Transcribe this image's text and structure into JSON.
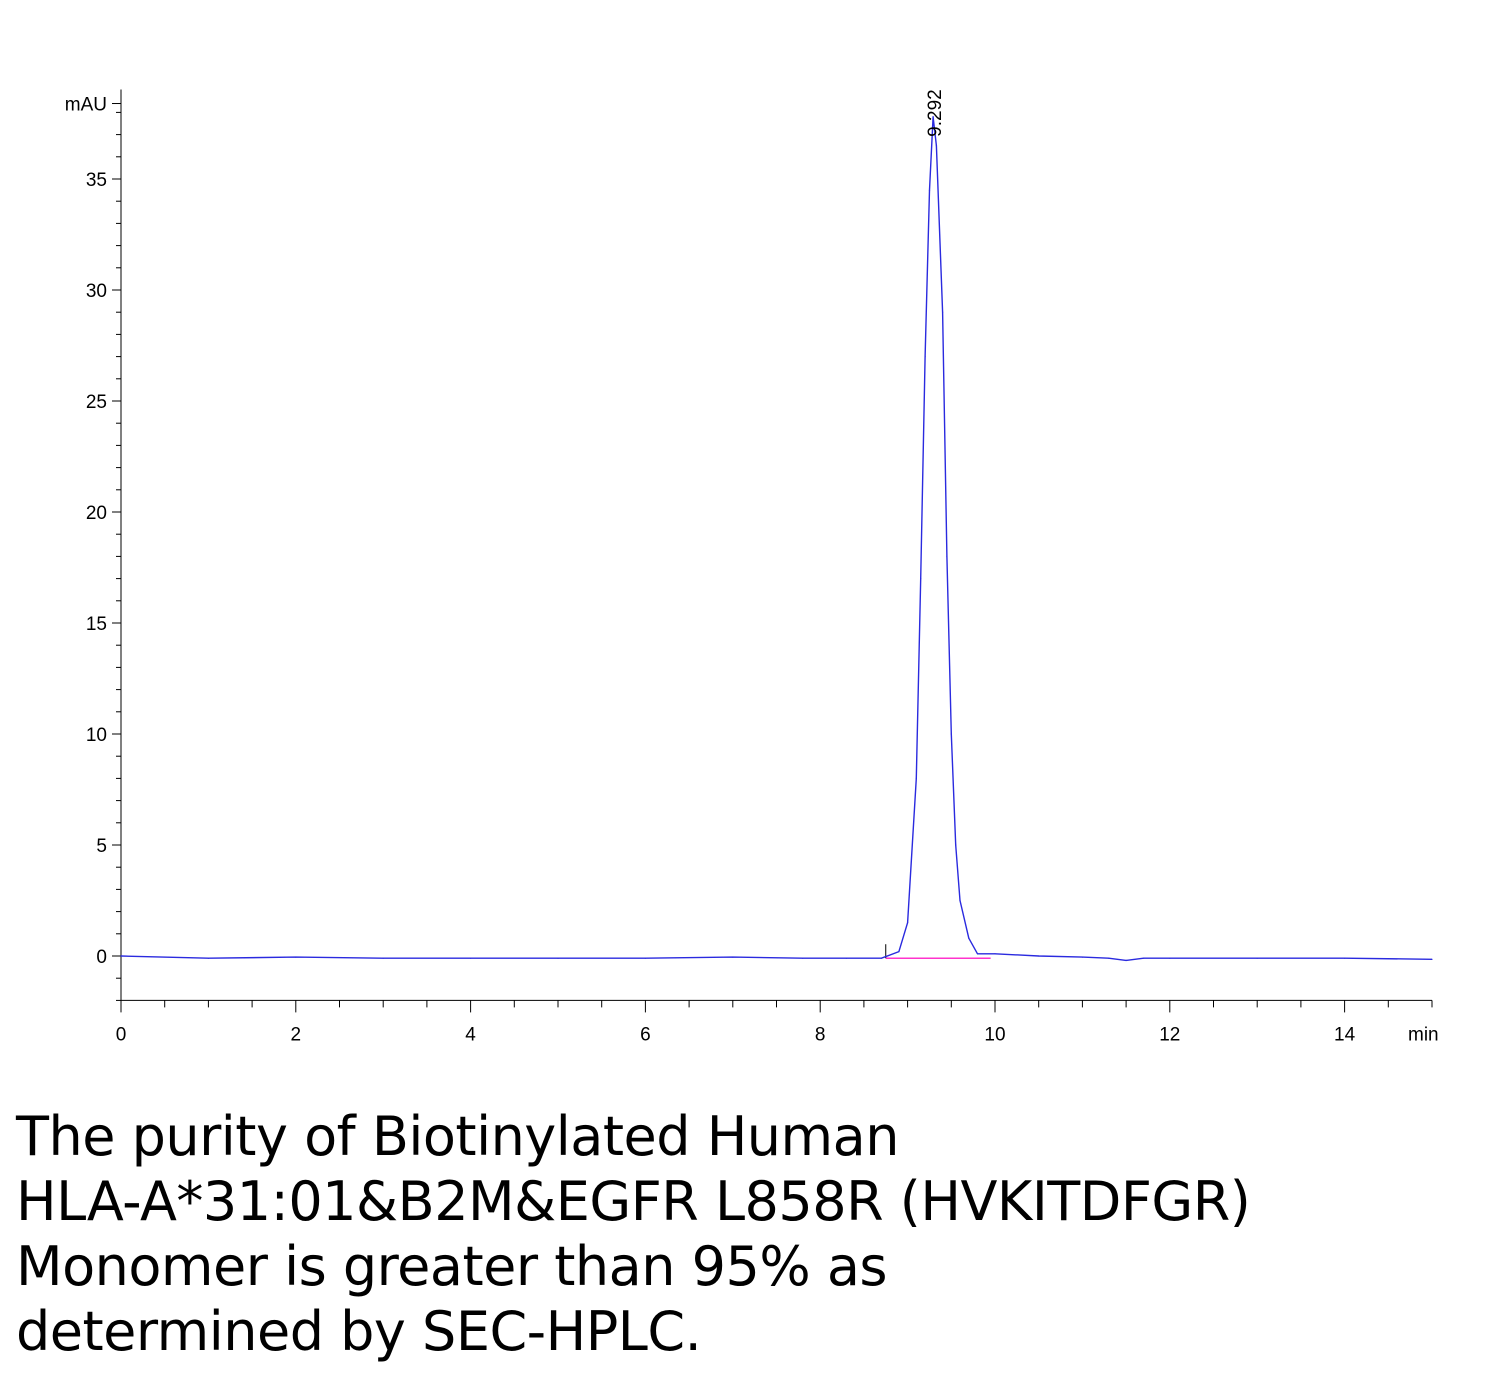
{
  "chart_data": {
    "type": "line",
    "y_unit": "mAU",
    "x_unit": "min",
    "xlim": [
      0,
      15
    ],
    "ylim": [
      -2,
      40
    ],
    "x_ticks": [
      0,
      2,
      4,
      6,
      8,
      10,
      12,
      14
    ],
    "y_ticks": [
      0,
      5,
      10,
      15,
      20,
      25,
      30,
      35
    ],
    "grid": false,
    "legend": "none",
    "line_color": "#2a2adf",
    "baseline_color": "#ff33cc",
    "series": [
      {
        "x": [
          0,
          1,
          2,
          3,
          4,
          5,
          6,
          7,
          7.8,
          8.3,
          8.7,
          8.9,
          9.0,
          9.1,
          9.15,
          9.2,
          9.25,
          9.292,
          9.33,
          9.4,
          9.45,
          9.5,
          9.55,
          9.6,
          9.7,
          9.8,
          10.0,
          10.5,
          11.0,
          11.3,
          11.5,
          11.7,
          12.0,
          13.0,
          14.0,
          15.0
        ],
        "y": [
          0.0,
          -0.1,
          -0.05,
          -0.1,
          -0.1,
          -0.1,
          -0.1,
          -0.05,
          -0.1,
          -0.1,
          -0.1,
          0.2,
          1.5,
          8.0,
          17.0,
          27.0,
          34.5,
          37.8,
          36.5,
          29.0,
          18.0,
          10.0,
          5.0,
          2.5,
          0.8,
          0.1,
          0.1,
          0.0,
          -0.05,
          -0.1,
          -0.2,
          -0.1,
          -0.1,
          -0.1,
          -0.1,
          -0.15
        ]
      }
    ],
    "peaks": [
      {
        "rt": 9.292,
        "label": "9.292"
      }
    ],
    "baseline": {
      "x_start": 8.75,
      "x_end": 9.95,
      "y": -0.1
    }
  },
  "caption": {
    "lines": [
      "The purity of Biotinylated Human",
      "HLA-A*31:01&B2M&EGFR L858R (HVKITDFGR)",
      "Monomer is greater than 95% as",
      "determined by SEC-HPLC."
    ]
  }
}
